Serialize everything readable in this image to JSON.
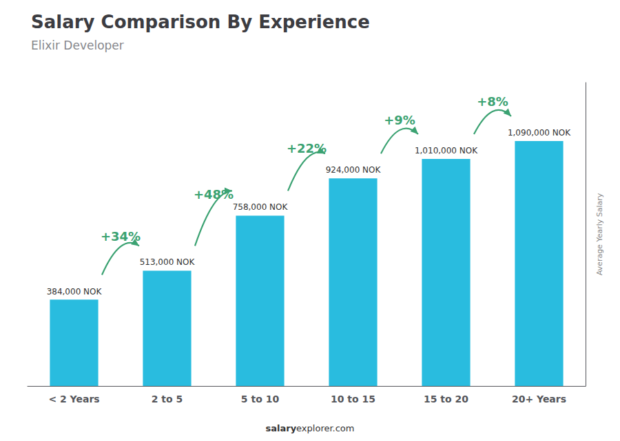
{
  "chart_data": {
    "type": "bar",
    "title": "Salary Comparison By Experience",
    "subtitle": "Elixir Developer",
    "ylabel": "Average Yearly Salary",
    "footer": [
      "salary",
      "explorer.com"
    ],
    "categories": [
      "< 2 Years",
      "2 to 5",
      "5 to 10",
      "10 to 15",
      "15 to 20",
      "20+ Years"
    ],
    "values": [
      384000,
      513000,
      758000,
      924000,
      1010000,
      1090000
    ],
    "value_labels": [
      "384,000 NOK",
      "513,000 NOK",
      "758,000 NOK",
      "924,000 NOK",
      "1,010,000 NOK",
      "1,090,000 NOK"
    ],
    "data_labels": true,
    "annotations": [
      "+34%",
      "+48%",
      "+22%",
      "+9%",
      "+8%"
    ],
    "color": "#29BCDF",
    "ylim": [
      0,
      1350000
    ],
    "grid": false,
    "tick_labels": "x"
  }
}
